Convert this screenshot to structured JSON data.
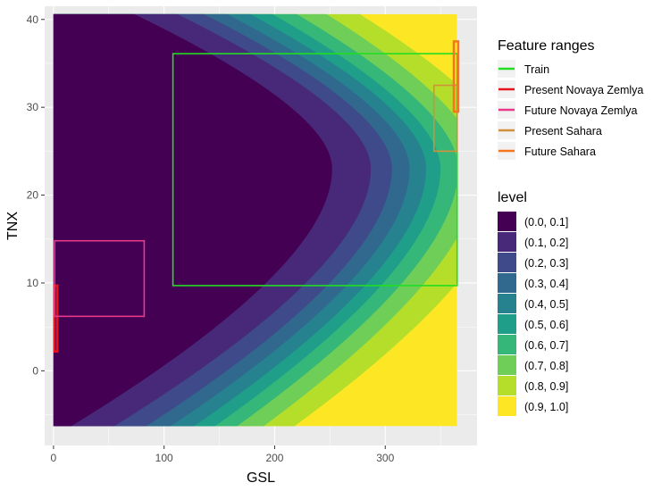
{
  "chart_data": {
    "type": "heatmap",
    "xlabel": "GSL",
    "ylabel": "TNX",
    "xlim": [
      -8,
      383
    ],
    "ylim": [
      -8.5,
      41.5
    ],
    "data_x_range": [
      0,
      365
    ],
    "data_y_range": [
      -6.3,
      40.6
    ],
    "x_ticks": [
      0,
      100,
      200,
      300
    ],
    "y_ticks": [
      0,
      10,
      20,
      30,
      40
    ],
    "grid": true,
    "surface": {
      "description_value": "level rises from 0 (purple, left) to 1 (yellow, right)",
      "vertex": [
        252,
        23
      ],
      "boundaries": [
        {
          "upper": 0.1,
          "x_at_vertex": 252,
          "x_at_top": 73,
          "x_at_bottom": 16
        },
        {
          "upper": 0.2,
          "x_at_vertex": 287,
          "x_at_top": 112,
          "x_at_bottom": 55
        },
        {
          "upper": 0.3,
          "x_at_vertex": 306,
          "x_at_top": 136,
          "x_at_bottom": 84
        },
        {
          "upper": 0.4,
          "x_at_vertex": 322,
          "x_at_top": 157,
          "x_at_bottom": 106
        },
        {
          "upper": 0.5,
          "x_at_vertex": 337,
          "x_at_top": 178,
          "x_at_bottom": 127
        },
        {
          "upper": 0.6,
          "x_at_vertex": 350,
          "x_at_top": 198,
          "x_at_bottom": 146
        },
        {
          "upper": 0.7,
          "x_at_vertex": 366,
          "x_at_top": 220,
          "x_at_bottom": 166
        },
        {
          "upper": 0.8,
          "x_at_vertex": 385,
          "x_at_top": 247,
          "x_at_bottom": 190
        },
        {
          "upper": 0.9,
          "x_at_vertex": 415,
          "x_at_top": 277,
          "x_at_bottom": 218
        }
      ]
    },
    "legend_placement": "right",
    "feature_ranges": {
      "title": "Feature ranges",
      "items": [
        {
          "name": "Train",
          "color": "#22dd22",
          "x": [
            108,
            365
          ],
          "y": [
            9.7,
            36.1
          ]
        },
        {
          "name": "Present Novaya Zemlya",
          "color": "#e8141c",
          "x": [
            1,
            3.5
          ],
          "y": [
            2.2,
            9.7
          ]
        },
        {
          "name": "Future Novaya Zemlya",
          "color": "#e8388a",
          "x": [
            1,
            82
          ],
          "y": [
            6.2,
            14.8
          ]
        },
        {
          "name": "Present Sahara",
          "color": "#d3903a",
          "x": [
            344,
            365
          ],
          "y": [
            25,
            32.5
          ]
        },
        {
          "name": "Future Sahara",
          "color": "#f5761c",
          "x": [
            362,
            366
          ],
          "y": [
            29.5,
            37.5
          ]
        }
      ]
    },
    "level_legend": {
      "title": "level",
      "items": [
        {
          "label": "(0.0, 0.1]",
          "color": "#440154"
        },
        {
          "label": "(0.1, 0.2]",
          "color": "#482878"
        },
        {
          "label": "(0.2, 0.3]",
          "color": "#3e4a89"
        },
        {
          "label": "(0.3, 0.4]",
          "color": "#31688e"
        },
        {
          "label": "(0.4, 0.5]",
          "color": "#26828e"
        },
        {
          "label": "(0.5, 0.6]",
          "color": "#1f9e89"
        },
        {
          "label": "(0.6, 0.7]",
          "color": "#35b779"
        },
        {
          "label": "(0.7, 0.8]",
          "color": "#6ece58"
        },
        {
          "label": "(0.8, 0.9]",
          "color": "#b5de2b"
        },
        {
          "label": "(0.9, 1.0]",
          "color": "#fde725"
        }
      ]
    },
    "colors": {
      "panel_background": "#ebebeb",
      "grid_major": "#ffffff"
    }
  }
}
